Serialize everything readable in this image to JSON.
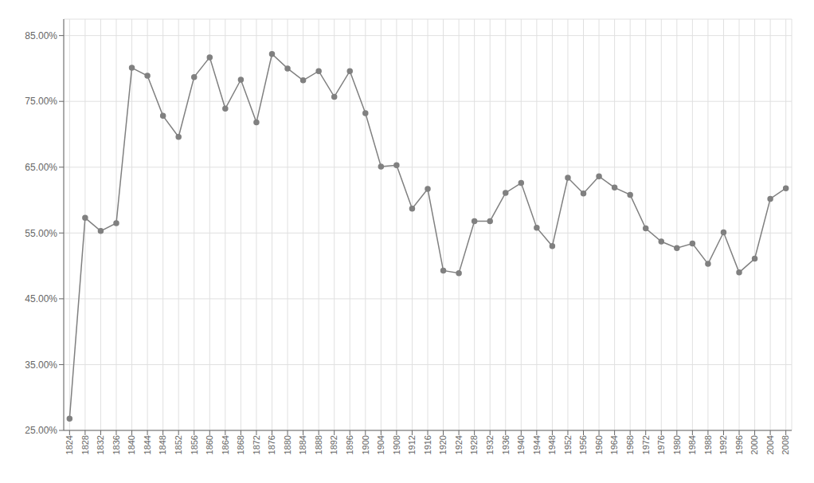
{
  "chart_data": {
    "type": "line",
    "x": [
      1824,
      1828,
      1832,
      1836,
      1840,
      1844,
      1848,
      1852,
      1856,
      1860,
      1864,
      1868,
      1872,
      1876,
      1880,
      1884,
      1888,
      1892,
      1896,
      1900,
      1904,
      1908,
      1912,
      1916,
      1920,
      1924,
      1928,
      1932,
      1936,
      1940,
      1944,
      1948,
      1952,
      1956,
      1960,
      1964,
      1968,
      1972,
      1976,
      1980,
      1984,
      1988,
      1992,
      1996,
      2000,
      2004,
      2008
    ],
    "values": [
      0.268,
      0.573,
      0.553,
      0.565,
      0.801,
      0.789,
      0.728,
      0.696,
      0.787,
      0.817,
      0.739,
      0.783,
      0.718,
      0.822,
      0.8,
      0.782,
      0.796,
      0.757,
      0.796,
      0.732,
      0.651,
      0.653,
      0.587,
      0.617,
      0.493,
      0.489,
      0.568,
      0.568,
      0.611,
      0.626,
      0.558,
      0.53,
      0.634,
      0.61,
      0.636,
      0.619,
      0.608,
      0.557,
      0.537,
      0.527,
      0.534,
      0.503,
      0.551,
      0.49,
      0.511,
      0.602,
      0.618
    ],
    "color": "#808080",
    "marker": "circle",
    "xlim": [
      1822.5,
      2009.5
    ],
    "xticks": [
      1824,
      1828,
      1832,
      1836,
      1840,
      1844,
      1848,
      1852,
      1856,
      1860,
      1864,
      1868,
      1872,
      1876,
      1880,
      1884,
      1888,
      1892,
      1896,
      1900,
      1904,
      1908,
      1912,
      1916,
      1920,
      1924,
      1928,
      1932,
      1936,
      1940,
      1944,
      1948,
      1952,
      1956,
      1960,
      1964,
      1968,
      1972,
      1976,
      1980,
      1984,
      1988,
      1992,
      1996,
      2000,
      2004,
      2008
    ],
    "ylim": [
      0.25,
      0.875
    ],
    "yticks": [
      {
        "value": 0.25,
        "label": "25.00%"
      },
      {
        "value": 0.35,
        "label": "35.00%"
      },
      {
        "value": 0.45,
        "label": "45.00%"
      },
      {
        "value": 0.55,
        "label": "55.00%"
      },
      {
        "value": 0.65,
        "label": "65.00%"
      },
      {
        "value": 0.75,
        "label": "75.00%"
      },
      {
        "value": 0.85,
        "label": "85.00%"
      }
    ],
    "grid": true
  }
}
